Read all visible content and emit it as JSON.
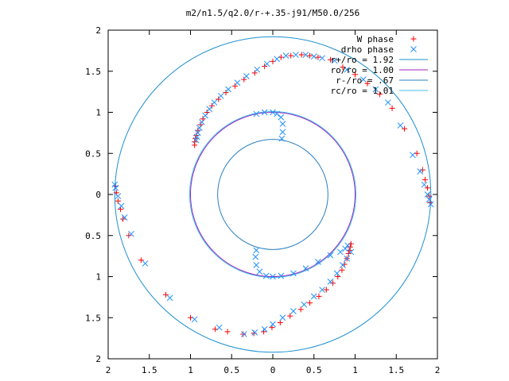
{
  "chart_data": {
    "type": "scatter",
    "title": "m2/n1.5/q2.0/r-+.35-j91/M50.0/256",
    "xlabel": "",
    "ylabel": "",
    "xlim": [
      -2,
      2
    ],
    "ylim": [
      -2,
      2
    ],
    "x_ticks": [
      -2,
      -1.5,
      -1,
      -0.5,
      0,
      0.5,
      1,
      1.5,
      2
    ],
    "y_ticks": [
      -2,
      -1.5,
      -1,
      -0.5,
      0,
      0.5,
      1,
      1.5,
      2
    ],
    "x_tick_labels": [
      "2",
      "1.5",
      "1",
      "0.5",
      "0",
      "0.5",
      "1",
      "1.5",
      "2"
    ],
    "y_tick_labels": [
      "2",
      "1.5",
      "1",
      "0.5",
      "0",
      "0.5",
      "1",
      "1.5",
      "2"
    ],
    "grid": false,
    "legend_position": "top-right",
    "legend": [
      {
        "label": "W phase",
        "marker": "plus",
        "color": "#ff0000"
      },
      {
        "label": "drho phase",
        "marker": "cross",
        "color": "#1e90ff"
      },
      {
        "label": "r+/ro = 1.92",
        "marker": "line",
        "color": "#1e90d0"
      },
      {
        "label": "ro/ro = 1.00",
        "marker": "line",
        "color": "#a020c0"
      },
      {
        "label": "r-/ro = .67",
        "marker": "line",
        "color": "#2a80c0"
      },
      {
        "label": "rc/ro = 1.01",
        "marker": "line",
        "color": "#40c0e8"
      }
    ],
    "circles": [
      {
        "name": "r+/ro = 1.92",
        "r": 1.92,
        "color": "#1e90d0"
      },
      {
        "name": "ro/ro = 1.00",
        "r": 1.0,
        "color": "#a020c0"
      },
      {
        "name": "r-/ro = .67",
        "r": 0.67,
        "color": "#2a80c0"
      },
      {
        "name": "rc/ro = 1.01",
        "r": 1.01,
        "color": "#40c0e8"
      }
    ],
    "series": [
      {
        "name": "W phase",
        "color": "#ff0000",
        "marker": "plus",
        "points": [
          [
            -0.95,
            0.6
          ],
          [
            -0.95,
            0.64
          ],
          [
            -0.94,
            0.68
          ],
          [
            -0.93,
            0.72
          ],
          [
            -0.91,
            0.78
          ],
          [
            -0.88,
            0.85
          ],
          [
            -0.85,
            0.92
          ],
          [
            -0.8,
            1.0
          ],
          [
            -0.74,
            1.08
          ],
          [
            -0.66,
            1.16
          ],
          [
            -0.57,
            1.24
          ],
          [
            -0.46,
            1.32
          ],
          [
            -0.35,
            1.4
          ],
          [
            -0.22,
            1.48
          ],
          [
            -0.1,
            1.56
          ],
          [
            0.0,
            1.62
          ],
          [
            0.1,
            1.67
          ],
          [
            0.22,
            1.69
          ],
          [
            0.35,
            1.7
          ],
          [
            0.45,
            1.69
          ],
          [
            0.55,
            1.67
          ],
          [
            0.7,
            1.64
          ],
          [
            0.85,
            1.55
          ],
          [
            1.0,
            1.46
          ],
          [
            1.15,
            1.35
          ],
          [
            1.3,
            1.22
          ],
          [
            1.45,
            1.05
          ],
          [
            1.6,
            0.8
          ],
          [
            1.75,
            0.5
          ],
          [
            1.82,
            0.3
          ],
          [
            1.85,
            0.18
          ],
          [
            1.88,
            0.08
          ],
          [
            1.9,
            -0.02
          ],
          [
            1.91,
            -0.1
          ],
          [
            0.95,
            -0.6
          ],
          [
            0.94,
            -0.64
          ],
          [
            0.93,
            -0.68
          ],
          [
            0.92,
            -0.72
          ],
          [
            0.9,
            -0.78
          ],
          [
            0.87,
            -0.85
          ],
          [
            0.84,
            -0.92
          ],
          [
            0.79,
            -1.0
          ],
          [
            0.73,
            -1.08
          ],
          [
            0.65,
            -1.16
          ],
          [
            0.56,
            -1.24
          ],
          [
            0.45,
            -1.32
          ],
          [
            0.34,
            -1.4
          ],
          [
            0.21,
            -1.48
          ],
          [
            0.09,
            -1.56
          ],
          [
            -0.01,
            -1.62
          ],
          [
            -0.11,
            -1.67
          ],
          [
            -0.23,
            -1.69
          ],
          [
            -0.36,
            -1.7
          ],
          [
            -0.55,
            -1.67
          ],
          [
            -0.7,
            -1.64
          ],
          [
            -1.0,
            -1.5
          ],
          [
            -1.3,
            -1.22
          ],
          [
            -1.6,
            -0.8
          ],
          [
            -1.75,
            -0.5
          ],
          [
            -1.82,
            -0.3
          ],
          [
            -1.85,
            -0.18
          ],
          [
            -1.88,
            -0.08
          ],
          [
            -1.9,
            0.02
          ],
          [
            -1.91,
            0.1
          ]
        ]
      },
      {
        "name": "drho phase",
        "color": "#1e90ff",
        "marker": "cross",
        "points": [
          [
            -0.93,
            0.66
          ],
          [
            -0.92,
            0.7
          ],
          [
            -0.91,
            0.75
          ],
          [
            -0.89,
            0.81
          ],
          [
            -0.86,
            0.88
          ],
          [
            -0.82,
            0.96
          ],
          [
            -0.77,
            1.04
          ],
          [
            -0.71,
            1.12
          ],
          [
            -0.63,
            1.2
          ],
          [
            -0.54,
            1.28
          ],
          [
            -0.43,
            1.36
          ],
          [
            -0.32,
            1.44
          ],
          [
            -0.19,
            1.52
          ],
          [
            -0.07,
            1.59
          ],
          [
            0.05,
            1.65
          ],
          [
            0.16,
            1.69
          ],
          [
            0.28,
            1.7
          ],
          [
            0.4,
            1.7
          ],
          [
            0.5,
            1.68
          ],
          [
            0.6,
            1.66
          ],
          [
            0.75,
            1.63
          ],
          [
            0.9,
            1.52
          ],
          [
            1.1,
            1.4
          ],
          [
            1.25,
            1.28
          ],
          [
            1.4,
            1.12
          ],
          [
            1.55,
            0.84
          ],
          [
            1.7,
            0.48
          ],
          [
            1.79,
            0.28
          ],
          [
            1.84,
            0.12
          ],
          [
            1.88,
            0.0
          ],
          [
            1.9,
            -0.06
          ],
          [
            1.92,
            -0.12
          ],
          [
            -0.2,
            0.98
          ],
          [
            -0.1,
            1.0
          ],
          [
            0.0,
            1.0
          ],
          [
            0.05,
            0.98
          ],
          [
            0.1,
            0.94
          ],
          [
            0.12,
            0.86
          ],
          [
            0.12,
            0.76
          ],
          [
            0.11,
            0.68
          ],
          [
            -0.2,
            -0.68
          ],
          [
            -0.21,
            -0.76
          ],
          [
            -0.2,
            -0.86
          ],
          [
            -0.16,
            -0.94
          ],
          [
            -0.08,
            -0.99
          ],
          [
            0.0,
            -1.0
          ],
          [
            0.1,
            -0.99
          ],
          [
            0.25,
            -0.96
          ],
          [
            0.4,
            -0.9
          ],
          [
            0.55,
            -0.82
          ],
          [
            0.7,
            -0.74
          ],
          [
            0.82,
            -0.7
          ],
          [
            0.88,
            -0.66
          ],
          [
            0.91,
            -0.62
          ],
          [
            0.95,
            -0.7
          ],
          [
            0.9,
            -0.78
          ],
          [
            0.85,
            -0.86
          ],
          [
            0.78,
            -0.96
          ],
          [
            0.7,
            -1.06
          ],
          [
            0.6,
            -1.16
          ],
          [
            0.5,
            -1.24
          ],
          [
            0.38,
            -1.34
          ],
          [
            0.25,
            -1.42
          ],
          [
            0.12,
            -1.5
          ],
          [
            0.0,
            -1.58
          ],
          [
            -0.1,
            -1.64
          ],
          [
            -0.22,
            -1.68
          ],
          [
            -0.35,
            -1.7
          ],
          [
            -0.65,
            -1.62
          ],
          [
            -0.95,
            -1.52
          ],
          [
            -1.25,
            -1.26
          ],
          [
            -1.55,
            -0.84
          ],
          [
            -1.72,
            -0.48
          ],
          [
            -1.8,
            -0.28
          ],
          [
            -1.84,
            -0.14
          ],
          [
            -1.88,
            -0.02
          ],
          [
            -1.91,
            0.08
          ],
          [
            -1.92,
            0.12
          ]
        ]
      }
    ]
  }
}
